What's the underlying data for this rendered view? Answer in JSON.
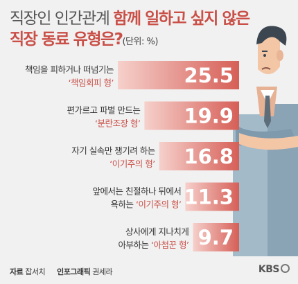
{
  "title": {
    "line1_normal": "직장인 인간관계 ",
    "line1_highlight": "함께 일하고 싶지 않은",
    "line2_highlight": "직장 동료 유형은?",
    "unit": "(단위: %)"
  },
  "colors": {
    "accent": "#d9645c",
    "bar_start": "#f6d0cb",
    "bar_end": "#d65f57",
    "tag": "#c94f47",
    "text": "#333333"
  },
  "chart_data": {
    "type": "bar",
    "orientation": "horizontal",
    "title": "직장인 인간관계 함께 일하고 싶지 않은 직장 동료 유형은?",
    "unit": "%",
    "categories": [
      {
        "desc": "책임을 피하거나 떠넘기는",
        "tag": "‘책임회피 형’",
        "value": 25.5
      },
      {
        "desc": "편가르고 파벌 만드는",
        "tag": "‘분란조장 형’",
        "value": 19.9
      },
      {
        "desc": "자기 실속만 챙기려 하는",
        "tag": "‘이기주의 형’",
        "value": 16.8
      },
      {
        "desc": "앞에서는 친절하나 뒤에서",
        "desc_prefix": "욕하는 ",
        "tag": "‘이기주의 형’",
        "value": 11.3
      },
      {
        "desc": "상사에게 지나치게",
        "desc_prefix": "아부하는 ",
        "tag": "‘아첨꾼 형’",
        "value": 9.7
      }
    ],
    "values": [
      25.5,
      19.9,
      16.8,
      11.3,
      9.7
    ],
    "grid": false,
    "legend": "none"
  },
  "footer": {
    "source_label": "자료",
    "source": "잡서치",
    "graphic_label": "인포그래픽",
    "graphic": "권세라",
    "logo": "KBS"
  }
}
